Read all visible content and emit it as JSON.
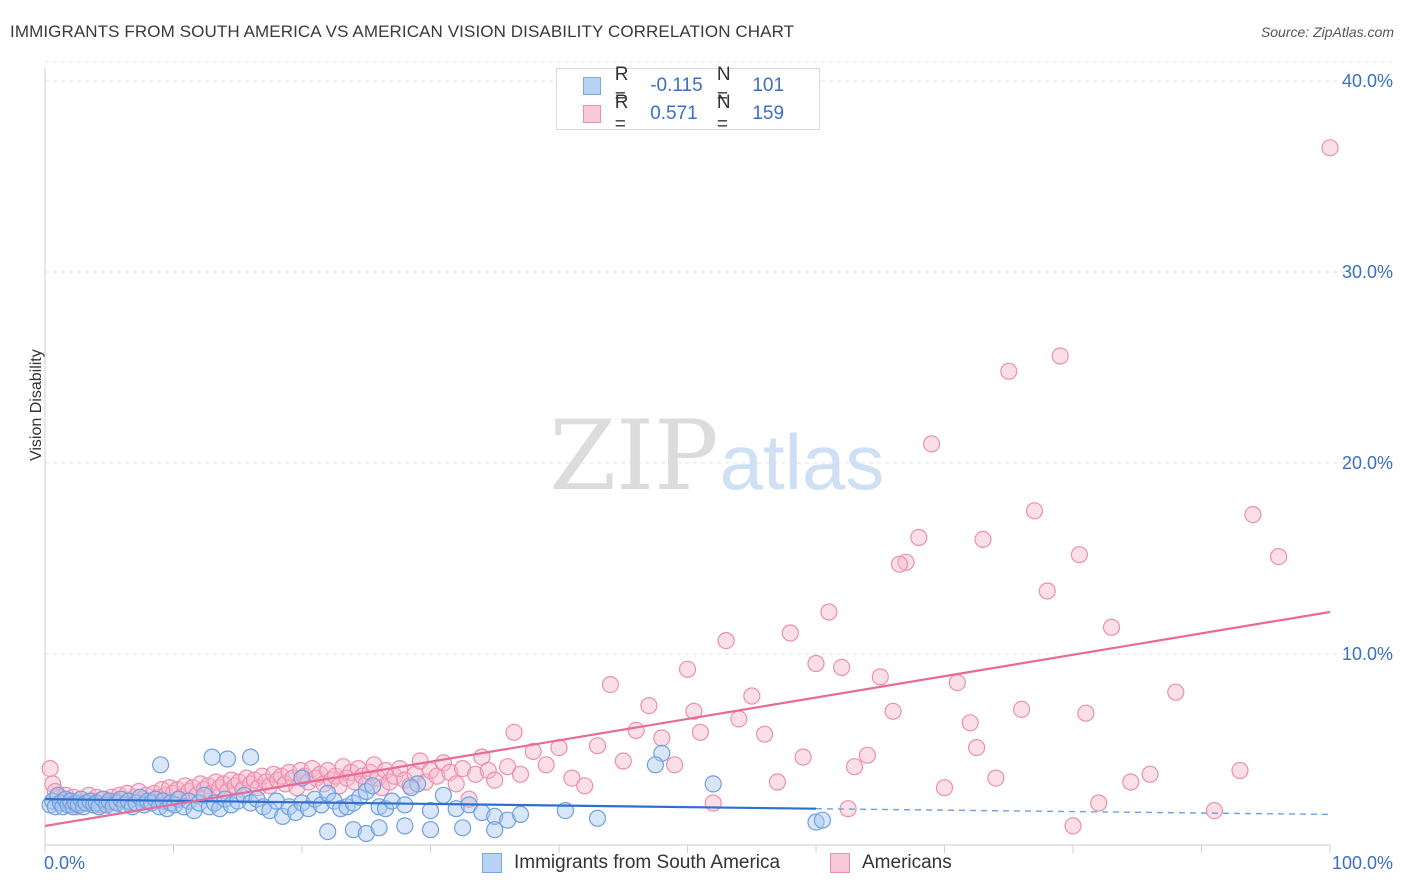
{
  "header": {
    "title": "IMMIGRANTS FROM SOUTH AMERICA VS AMERICAN VISION DISABILITY CORRELATION CHART",
    "source": "Source: ZipAtlas.com"
  },
  "watermark": {
    "zip": "ZIP",
    "atlas": "atlas"
  },
  "legend": {
    "rows": [
      {
        "r_key": "R =",
        "r_val": "-0.115",
        "n_key": "N =",
        "n_val": "101",
        "color": "#a8c8f0"
      },
      {
        "r_key": "R =",
        "r_val": "0.571",
        "n_key": "N =",
        "n_val": "159",
        "color": "#f6b8ca"
      }
    ]
  },
  "bottom_legend": {
    "blue_label": "Immigrants from South America",
    "pink_label": "Americans"
  },
  "chart_data": {
    "type": "scatter",
    "title": "IMMIGRANTS FROM SOUTH AMERICA VS AMERICAN VISION DISABILITY CORRELATION CHART",
    "xlabel": "",
    "ylabel": "Vision Disability",
    "xlim": [
      0,
      100
    ],
    "ylim": [
      0,
      42
    ],
    "x_tick_labels": [
      "0.0%",
      "100.0%"
    ],
    "y_ticks": [
      10,
      20,
      30,
      40
    ],
    "y_tick_labels": [
      "10.0%",
      "20.0%",
      "30.0%",
      "40.0%"
    ],
    "grid": true,
    "legend_position": "top-center",
    "series": [
      {
        "name": "Immigrants from South America",
        "color": "#6fa0e0",
        "fill": "#a8c8f0",
        "r": -0.115,
        "n": 101,
        "trend": {
          "x0": 0,
          "y0": 2.4,
          "x1": 60,
          "y1": 1.9,
          "dashed_to": 100,
          "y_dashed_end": 1.6
        },
        "points": [
          [
            0.4,
            2.1
          ],
          [
            0.6,
            2.3
          ],
          [
            0.8,
            2.0
          ],
          [
            1.0,
            2.6
          ],
          [
            1.2,
            2.2
          ],
          [
            1.4,
            2.0
          ],
          [
            1.6,
            2.4
          ],
          [
            1.8,
            2.1
          ],
          [
            2.0,
            2.3
          ],
          [
            2.2,
            2.0
          ],
          [
            2.4,
            2.2
          ],
          [
            2.6,
            2.1
          ],
          [
            2.8,
            2.4
          ],
          [
            3.0,
            2.0
          ],
          [
            3.2,
            2.2
          ],
          [
            3.5,
            2.3
          ],
          [
            3.8,
            2.1
          ],
          [
            4.0,
            2.2
          ],
          [
            4.2,
            2.0
          ],
          [
            4.5,
            2.4
          ],
          [
            4.8,
            2.1
          ],
          [
            5.0,
            2.3
          ],
          [
            5.3,
            2.0
          ],
          [
            5.6,
            2.2
          ],
          [
            5.9,
            2.4
          ],
          [
            6.2,
            2.1
          ],
          [
            6.5,
            2.3
          ],
          [
            6.8,
            2.0
          ],
          [
            7.1,
            2.2
          ],
          [
            7.4,
            2.5
          ],
          [
            7.7,
            2.1
          ],
          [
            8.0,
            2.3
          ],
          [
            8.3,
            2.2
          ],
          [
            8.6,
            2.4
          ],
          [
            8.9,
            2.0
          ],
          [
            9.2,
            2.3
          ],
          [
            9.5,
            1.9
          ],
          [
            9.8,
            2.2
          ],
          [
            10.1,
            2.1
          ],
          [
            10.4,
            2.4
          ],
          [
            10.8,
            2.0
          ],
          [
            11.2,
            2.3
          ],
          [
            11.6,
            1.8
          ],
          [
            12.0,
            2.2
          ],
          [
            12.4,
            2.6
          ],
          [
            12.8,
            2.0
          ],
          [
            13.2,
            2.2
          ],
          [
            13.6,
            1.9
          ],
          [
            14.0,
            2.4
          ],
          [
            14.5,
            2.1
          ],
          [
            15.0,
            2.3
          ],
          [
            15.5,
            2.6
          ],
          [
            16.0,
            2.2
          ],
          [
            16.5,
            2.4
          ],
          [
            17.0,
            2.0
          ],
          [
            17.5,
            1.8
          ],
          [
            18.0,
            2.3
          ],
          [
            18.5,
            1.5
          ],
          [
            19.0,
            2.0
          ],
          [
            19.5,
            1.7
          ],
          [
            20.0,
            2.2
          ],
          [
            20.5,
            1.9
          ],
          [
            21.0,
            2.4
          ],
          [
            21.5,
            2.1
          ],
          [
            22.0,
            2.7
          ],
          [
            22.5,
            2.3
          ],
          [
            23.0,
            1.9
          ],
          [
            23.5,
            2.0
          ],
          [
            24.0,
            2.2
          ],
          [
            24.5,
            2.5
          ],
          [
            25.0,
            2.8
          ],
          [
            25.5,
            3.1
          ],
          [
            26.0,
            2.0
          ],
          [
            26.5,
            1.9
          ],
          [
            27.0,
            2.3
          ],
          [
            28.0,
            2.1
          ],
          [
            29.0,
            3.2
          ],
          [
            30.0,
            1.8
          ],
          [
            31.0,
            2.6
          ],
          [
            32.0,
            1.9
          ],
          [
            33.0,
            2.1
          ],
          [
            34.0,
            1.7
          ],
          [
            35.0,
            1.5
          ],
          [
            22.0,
            0.7
          ],
          [
            24.0,
            0.8
          ],
          [
            25.0,
            0.6
          ],
          [
            26.0,
            0.9
          ],
          [
            28.0,
            1.0
          ],
          [
            30.0,
            0.8
          ],
          [
            32.5,
            0.9
          ],
          [
            35.0,
            0.8
          ],
          [
            36.0,
            1.3
          ],
          [
            37.0,
            1.6
          ],
          [
            13.0,
            4.6
          ],
          [
            14.2,
            4.5
          ],
          [
            16.0,
            4.6
          ],
          [
            20.0,
            3.5
          ],
          [
            28.5,
            3.0
          ],
          [
            40.5,
            1.8
          ],
          [
            43.0,
            1.4
          ],
          [
            48.0,
            4.8
          ],
          [
            60.0,
            1.2
          ],
          [
            60.5,
            1.3
          ],
          [
            52.0,
            3.2
          ],
          [
            47.5,
            4.2
          ],
          [
            9.0,
            4.2
          ]
        ]
      },
      {
        "name": "Americans",
        "color": "#ec8fae",
        "fill": "#f6b8ca",
        "r": 0.571,
        "n": 159,
        "trend": {
          "x0": 0,
          "y0": 1.0,
          "x1": 100,
          "y1": 12.2
        },
        "points": [
          [
            0.4,
            4.0
          ],
          [
            0.6,
            3.2
          ],
          [
            0.8,
            2.8
          ],
          [
            1.0,
            2.5
          ],
          [
            1.3,
            2.3
          ],
          [
            1.6,
            2.6
          ],
          [
            1.9,
            2.2
          ],
          [
            2.2,
            2.5
          ],
          [
            2.5,
            2.0
          ],
          [
            2.8,
            2.4
          ],
          [
            3.1,
            2.2
          ],
          [
            3.4,
            2.6
          ],
          [
            3.7,
            2.3
          ],
          [
            4.0,
            2.5
          ],
          [
            4.3,
            2.1
          ],
          [
            4.6,
            2.4
          ],
          [
            4.9,
            2.2
          ],
          [
            5.2,
            2.5
          ],
          [
            5.5,
            2.3
          ],
          [
            5.8,
            2.6
          ],
          [
            6.1,
            2.4
          ],
          [
            6.4,
            2.7
          ],
          [
            6.7,
            2.2
          ],
          [
            7.0,
            2.5
          ],
          [
            7.3,
            2.8
          ],
          [
            7.6,
            2.4
          ],
          [
            7.9,
            2.6
          ],
          [
            8.2,
            2.3
          ],
          [
            8.5,
            2.7
          ],
          [
            8.8,
            2.5
          ],
          [
            9.1,
            2.9
          ],
          [
            9.4,
            2.6
          ],
          [
            9.7,
            3.0
          ],
          [
            10.0,
            2.7
          ],
          [
            10.3,
            2.9
          ],
          [
            10.6,
            2.5
          ],
          [
            10.9,
            3.1
          ],
          [
            11.2,
            2.8
          ],
          [
            11.5,
            3.0
          ],
          [
            11.8,
            2.6
          ],
          [
            12.1,
            3.2
          ],
          [
            12.4,
            2.9
          ],
          [
            12.7,
            3.1
          ],
          [
            13.0,
            2.7
          ],
          [
            13.3,
            3.3
          ],
          [
            13.6,
            3.0
          ],
          [
            13.9,
            3.2
          ],
          [
            14.2,
            2.8
          ],
          [
            14.5,
            3.4
          ],
          [
            14.8,
            3.1
          ],
          [
            15.1,
            3.3
          ],
          [
            15.4,
            2.9
          ],
          [
            15.7,
            3.5
          ],
          [
            16.0,
            3.2
          ],
          [
            16.3,
            3.4
          ],
          [
            16.6,
            3.0
          ],
          [
            16.9,
            3.6
          ],
          [
            17.2,
            3.3
          ],
          [
            17.5,
            3.1
          ],
          [
            17.8,
            3.7
          ],
          [
            18.1,
            3.4
          ],
          [
            18.4,
            3.6
          ],
          [
            18.7,
            3.2
          ],
          [
            19.0,
            3.8
          ],
          [
            19.3,
            3.5
          ],
          [
            19.6,
            3.0
          ],
          [
            19.9,
            3.9
          ],
          [
            20.2,
            3.6
          ],
          [
            20.5,
            3.3
          ],
          [
            20.8,
            4.0
          ],
          [
            21.1,
            3.5
          ],
          [
            21.4,
            3.7
          ],
          [
            21.7,
            3.2
          ],
          [
            22.0,
            3.9
          ],
          [
            22.3,
            3.4
          ],
          [
            22.6,
            3.6
          ],
          [
            22.9,
            3.1
          ],
          [
            23.2,
            4.1
          ],
          [
            23.5,
            3.5
          ],
          [
            23.8,
            3.8
          ],
          [
            24.1,
            3.3
          ],
          [
            24.4,
            4.0
          ],
          [
            24.7,
            3.6
          ],
          [
            25.0,
            3.2
          ],
          [
            25.3,
            3.8
          ],
          [
            25.6,
            4.2
          ],
          [
            25.9,
            3.5
          ],
          [
            26.2,
            3.0
          ],
          [
            26.5,
            3.9
          ],
          [
            26.8,
            3.3
          ],
          [
            27.2,
            3.6
          ],
          [
            27.6,
            4.0
          ],
          [
            28.0,
            3.4
          ],
          [
            28.4,
            3.1
          ],
          [
            28.8,
            3.7
          ],
          [
            29.2,
            4.4
          ],
          [
            29.6,
            3.3
          ],
          [
            30.0,
            3.9
          ],
          [
            30.5,
            3.6
          ],
          [
            31.0,
            4.3
          ],
          [
            31.5,
            3.8
          ],
          [
            32.0,
            3.2
          ],
          [
            32.5,
            4.0
          ],
          [
            33.0,
            2.4
          ],
          [
            33.5,
            3.7
          ],
          [
            34.0,
            4.6
          ],
          [
            34.5,
            3.9
          ],
          [
            35.0,
            3.4
          ],
          [
            36.0,
            4.1
          ],
          [
            36.5,
            5.9
          ],
          [
            37.0,
            3.7
          ],
          [
            38.0,
            4.9
          ],
          [
            39.0,
            4.2
          ],
          [
            40.0,
            5.1
          ],
          [
            41.0,
            3.5
          ],
          [
            42.0,
            3.1
          ],
          [
            43.0,
            5.2
          ],
          [
            44.0,
            8.4
          ],
          [
            45.0,
            4.4
          ],
          [
            46.0,
            6.0
          ],
          [
            47.0,
            7.3
          ],
          [
            48.0,
            5.6
          ],
          [
            49.0,
            4.2
          ],
          [
            50.0,
            9.2
          ],
          [
            50.5,
            7.0
          ],
          [
            51.0,
            5.9
          ],
          [
            52.0,
            2.2
          ],
          [
            53.0,
            10.7
          ],
          [
            54.0,
            6.6
          ],
          [
            55.0,
            7.8
          ],
          [
            56.0,
            5.8
          ],
          [
            57.0,
            3.3
          ],
          [
            58.0,
            11.1
          ],
          [
            59.0,
            4.6
          ],
          [
            60.0,
            9.5
          ],
          [
            61.0,
            12.2
          ],
          [
            62.0,
            9.3
          ],
          [
            63.0,
            4.1
          ],
          [
            64.0,
            4.7
          ],
          [
            65.0,
            8.8
          ],
          [
            66.0,
            7.0
          ],
          [
            67.0,
            14.8
          ],
          [
            68.0,
            16.1
          ],
          [
            69.0,
            21.0
          ],
          [
            70.0,
            3.0
          ],
          [
            71.0,
            8.5
          ],
          [
            72.0,
            6.4
          ],
          [
            73.0,
            16.0
          ],
          [
            74.0,
            3.5
          ],
          [
            75.0,
            24.8
          ],
          [
            76.0,
            7.1
          ],
          [
            77.0,
            17.5
          ],
          [
            78.0,
            13.3
          ],
          [
            79.0,
            25.6
          ],
          [
            80.0,
            1.0
          ],
          [
            80.5,
            15.2
          ],
          [
            81.0,
            6.9
          ],
          [
            82.0,
            2.2
          ],
          [
            83.0,
            11.4
          ],
          [
            86.0,
            3.7
          ],
          [
            88.0,
            8.0
          ],
          [
            91.0,
            1.8
          ],
          [
            93.0,
            3.9
          ],
          [
            94.0,
            17.3
          ],
          [
            96.0,
            15.1
          ],
          [
            100.0,
            36.5
          ],
          [
            62.5,
            1.9
          ],
          [
            66.5,
            14.7
          ],
          [
            72.5,
            5.1
          ],
          [
            84.5,
            3.3
          ]
        ]
      }
    ]
  }
}
